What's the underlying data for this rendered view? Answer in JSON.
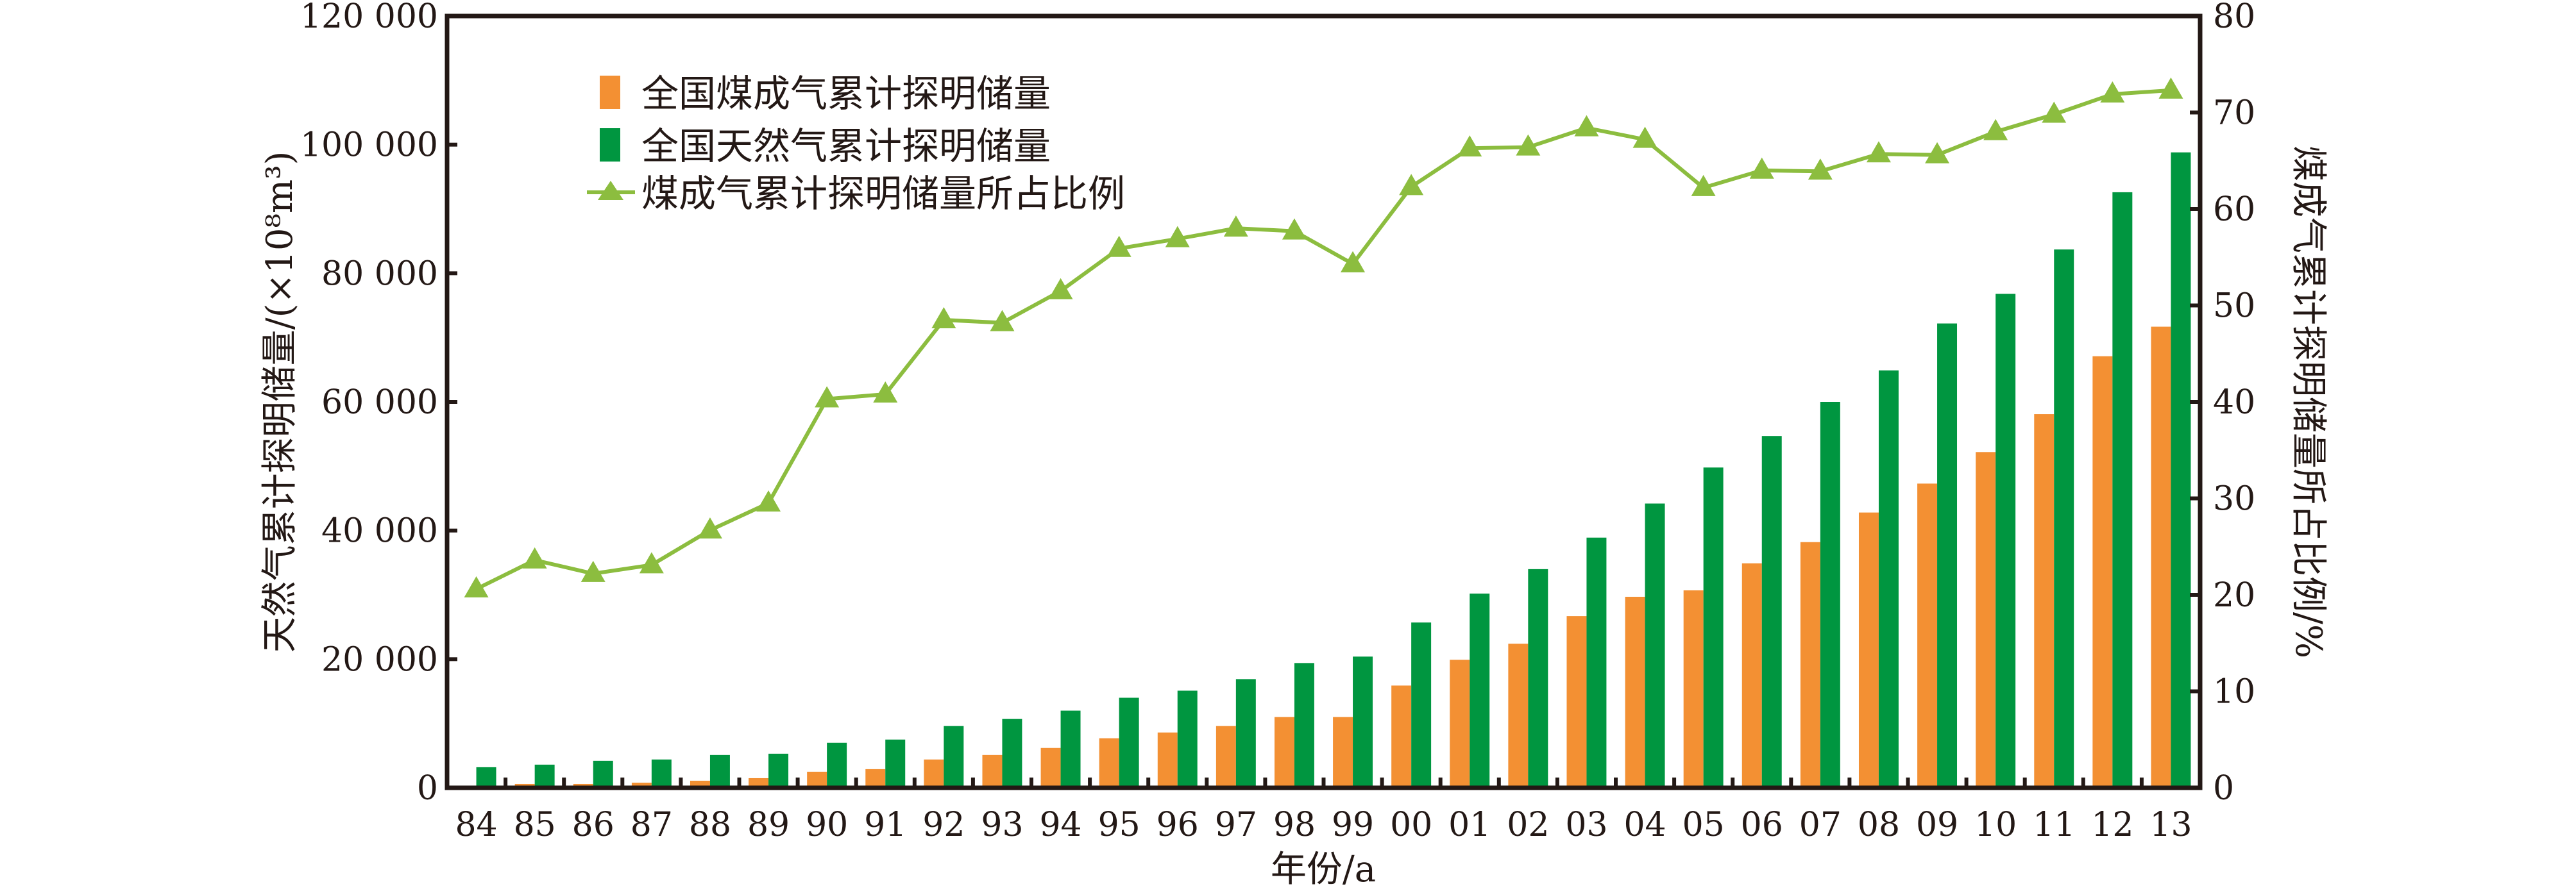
{
  "chart_data": {
    "type": "bar",
    "title": "",
    "xlabel": "年份/a",
    "ylabel": "天然气累计探明储量/(×10⁸m³)",
    "y2label": "煤成气累计探明储量所占比例/%",
    "ylim": [
      0,
      120000
    ],
    "y2lim": [
      0,
      80
    ],
    "yticks": [
      "0",
      "20 000",
      "40 000",
      "60 000",
      "80 000",
      "100 000",
      "120 000"
    ],
    "y2ticks": [
      "0",
      "10",
      "20",
      "30",
      "40",
      "50",
      "60",
      "70",
      "80"
    ],
    "categories": [
      "84",
      "85",
      "86",
      "87",
      "88",
      "89",
      "90",
      "91",
      "92",
      "93",
      "94",
      "95",
      "96",
      "97",
      "98",
      "99",
      "00",
      "01",
      "02",
      "03",
      "04",
      "05",
      "06",
      "07",
      "08",
      "09",
      "10",
      "11",
      "12",
      "13"
    ],
    "series": [
      {
        "name": "全国煤成气累计探明储量",
        "type": "bar",
        "axis": "left",
        "color": "#f39033",
        "values": [
          300,
          600,
          600,
          800,
          1100,
          1500,
          2500,
          2900,
          4400,
          5100,
          6200,
          7700,
          8600,
          9600,
          11000,
          11000,
          15900,
          19900,
          22400,
          26700,
          29700,
          30700,
          34900,
          38200,
          42800,
          47300,
          52200,
          58100,
          67100,
          71700
        ]
      },
      {
        "name": "全国天然气累计探明储量",
        "type": "bar",
        "axis": "left",
        "color": "#009640",
        "values": [
          3200,
          3600,
          4200,
          4400,
          5100,
          5300,
          7000,
          7500,
          9600,
          10700,
          12000,
          14000,
          15100,
          16900,
          19400,
          20400,
          25700,
          30200,
          34000,
          38900,
          44200,
          49800,
          54700,
          60000,
          64900,
          72200,
          76800,
          83700,
          92600,
          98800
        ]
      },
      {
        "name": "煤成气累计探明储量所占比例",
        "type": "line",
        "axis": "right",
        "color": "#8cbd3f",
        "values": [
          20.6,
          23.6,
          22.2,
          23.1,
          26.7,
          29.5,
          40.3,
          40.8,
          48.5,
          48.2,
          51.5,
          55.9,
          56.9,
          58.0,
          57.7,
          54.3,
          62.3,
          66.3,
          66.4,
          68.4,
          67.2,
          62.2,
          64.0,
          63.9,
          65.7,
          65.6,
          68.0,
          69.8,
          71.9,
          72.3
        ]
      }
    ],
    "legend_position": "top-left",
    "grid": false
  }
}
